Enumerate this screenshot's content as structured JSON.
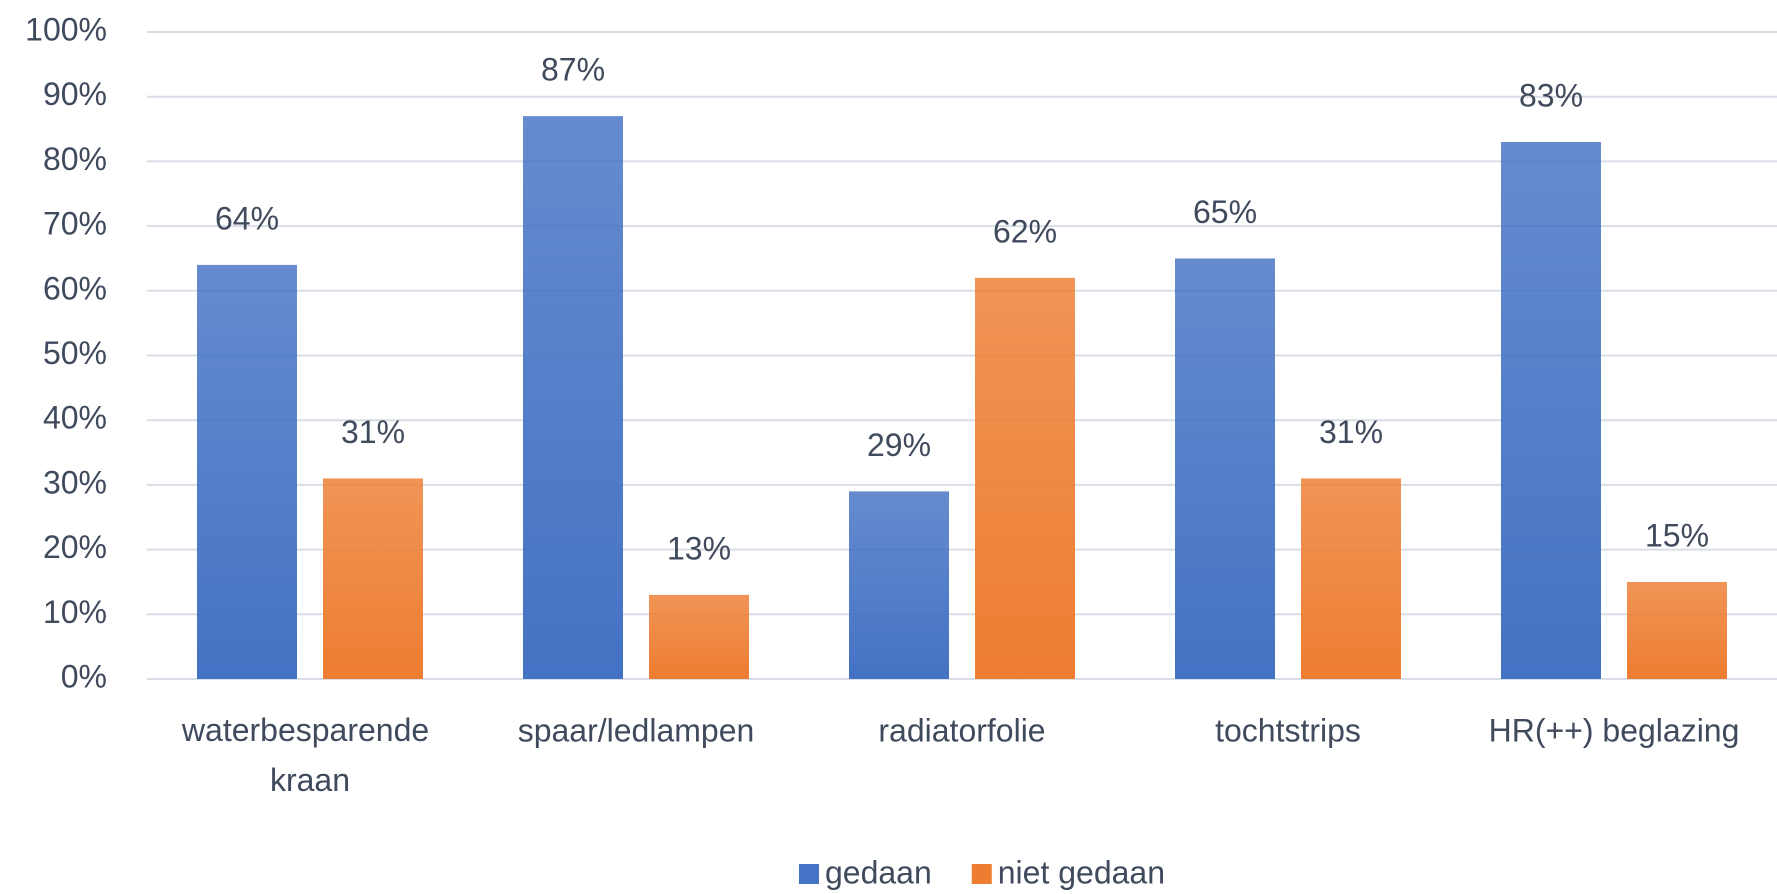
{
  "chart_data": {
    "type": "bar",
    "categories": [
      "waterbesparende kraan",
      "spaar/ledlampen",
      "radiatorfolie",
      "tochtstrips",
      "HR(++) beglazing"
    ],
    "series": [
      {
        "name": "gedaan",
        "color": "#4472c4",
        "values": [
          64,
          87,
          29,
          65,
          83
        ],
        "value_labels": [
          "64%",
          "87%",
          "29%",
          "65%",
          "83%"
        ]
      },
      {
        "name": "niet gedaan",
        "color": "#ed7d31",
        "values": [
          31,
          13,
          62,
          31,
          15
        ],
        "value_labels": [
          "31%",
          "13%",
          "62%",
          "31%",
          "15%"
        ]
      }
    ],
    "ylim": [
      0,
      100
    ],
    "yticks": [
      {
        "value": 0,
        "label": "0%"
      },
      {
        "value": 10,
        "label": "10%"
      },
      {
        "value": 20,
        "label": "20%"
      },
      {
        "value": 30,
        "label": "30%"
      },
      {
        "value": 40,
        "label": "40%"
      },
      {
        "value": 50,
        "label": "50%"
      },
      {
        "value": 60,
        "label": "60%"
      },
      {
        "value": 70,
        "label": "70%"
      },
      {
        "value": 80,
        "label": "80%"
      },
      {
        "value": 90,
        "label": "90%"
      },
      {
        "value": 100,
        "label": "100%"
      }
    ],
    "grid": true,
    "legend": "bottom"
  }
}
